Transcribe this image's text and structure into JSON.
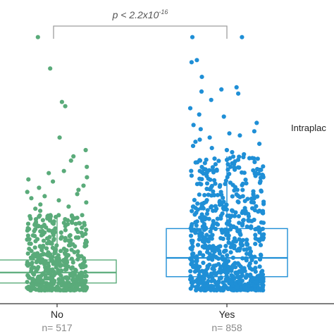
{
  "chart_data": {
    "type": "scatter",
    "subtype": "box-with-jitter",
    "categories": [
      "No",
      "Yes"
    ],
    "counts": [
      "n= 517",
      "n= 858"
    ],
    "annotation": {
      "text_prefix": "p < 2.2x10",
      "text_exponent": "-16"
    },
    "side_label": "Intraplac",
    "colors": {
      "No": "#5aab7a",
      "Yes": "#1f8fd6",
      "bracket": "#9e9e9e",
      "axis": "#333333",
      "count_text": "#8a8a8a"
    },
    "ylim": [
      0,
      13.2
    ],
    "groups": [
      {
        "name": "No",
        "n": 517,
        "box": {
          "q1": 0.35,
          "median": 0.85,
          "q3": 1.45,
          "lower_whisker": 0.0,
          "upper_whisker": 3.6
        },
        "jitter_width": 0.45,
        "bulk_points": 460,
        "outliers": [
          12.1,
          10.6,
          9.0,
          8.8,
          7.3,
          6.7,
          6.4,
          6.2,
          5.9,
          5.7,
          5.6,
          5.4,
          5.3,
          5.2,
          5.0,
          4.9,
          4.8,
          4.7,
          4.6,
          4.5,
          4.4,
          4.3,
          4.2,
          4.1,
          4.0,
          3.9,
          3.8
        ]
      },
      {
        "name": "Yes",
        "n": 858,
        "box": {
          "q1": 0.65,
          "median": 1.55,
          "q3": 2.95,
          "lower_whisker": 0.0,
          "upper_whisker": 6.4
        },
        "jitter_width": 0.55,
        "bulk_points": 760,
        "outliers": [
          12.1,
          12.1,
          11.0,
          10.9,
          10.2,
          9.7,
          9.6,
          9.5,
          9.4,
          9.1,
          8.7,
          8.4,
          8.3,
          8.0,
          7.9,
          7.7,
          7.6,
          7.5,
          7.4,
          7.3,
          7.2,
          7.1,
          7.0,
          6.9,
          6.8,
          6.7,
          6.6,
          6.5
        ]
      }
    ]
  }
}
